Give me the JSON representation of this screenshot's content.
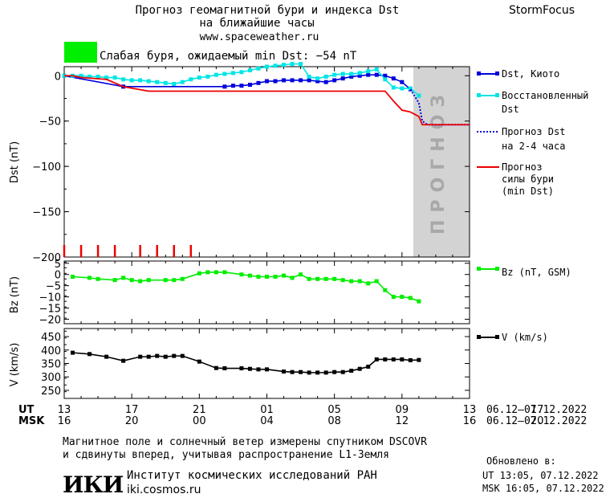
{
  "header": {
    "title_line1": "Прогноз геомагнитной бури и индекса Dst",
    "title_line2": "на ближайшие часы",
    "site": "www.spaceweather.ru",
    "brand": "StormFocus"
  },
  "alert": {
    "color": "#00ee00",
    "text": "Слабая буря, ожидаемый min Dst: −54 nT"
  },
  "forecast_label": "ПРОГНОЗ",
  "colors": {
    "kyoto": "#0000dd",
    "restored": "#00e5e5",
    "forecast": "#0000dd",
    "storm": "#ee0000",
    "bz": "#00ee00",
    "v": "#000000",
    "forecast_bg": "#d3d3d3"
  },
  "chart_data": [
    {
      "type": "line",
      "x": [
        13,
        13.5,
        14,
        14.5,
        15,
        15.5,
        16,
        16.5,
        17,
        17.5,
        18,
        18.5,
        19,
        19.5,
        20,
        20.5,
        21,
        21.5,
        22,
        22.5,
        23,
        23.5,
        24,
        24.5,
        25,
        25.5,
        26,
        26.5,
        27,
        27.5,
        28,
        28.5,
        29,
        29.5,
        30,
        30.5,
        31,
        31.5,
        32,
        32.5,
        33,
        33.5,
        34,
        34.5
      ],
      "ylabel": "Dst (nT)",
      "ylim": [
        -200,
        10
      ],
      "yticks": [
        0,
        -50,
        -100,
        -150,
        -200
      ],
      "series": [
        {
          "name": "Dst, Киото",
          "points": [
            [
              13,
              0
            ],
            [
              16.5,
              -12
            ],
            [
              22.5,
              -12
            ],
            [
              23,
              -11
            ],
            [
              23.5,
              -11
            ],
            [
              24,
              -10
            ],
            [
              24.5,
              -8
            ],
            [
              25,
              -6
            ],
            [
              25.5,
              -6
            ],
            [
              26,
              -5
            ],
            [
              26.5,
              -5
            ],
            [
              27,
              -5
            ],
            [
              27.5,
              -5
            ],
            [
              28,
              -6
            ],
            [
              28.5,
              -7
            ],
            [
              29,
              -5
            ],
            [
              29.5,
              -3
            ],
            [
              30,
              -1
            ],
            [
              30.5,
              0
            ],
            [
              31,
              1
            ],
            [
              31.5,
              1
            ],
            [
              32,
              0
            ],
            [
              32.5,
              -3
            ],
            [
              33,
              -7
            ],
            [
              33.5,
              -15
            ]
          ]
        },
        {
          "name": "Восстановленный Dst",
          "points": [
            [
              13,
              0
            ],
            [
              13.5,
              0
            ],
            [
              14,
              0
            ],
            [
              14.5,
              -1
            ],
            [
              15,
              -1
            ],
            [
              15.5,
              -2
            ],
            [
              16,
              -2
            ],
            [
              16.5,
              -4
            ],
            [
              17,
              -5
            ],
            [
              17.5,
              -5
            ],
            [
              18,
              -6
            ],
            [
              18.5,
              -7
            ],
            [
              19,
              -8
            ],
            [
              19.5,
              -9
            ],
            [
              20,
              -7
            ],
            [
              20.5,
              -4
            ],
            [
              21,
              -2
            ],
            [
              21.5,
              -1
            ],
            [
              22,
              1
            ],
            [
              22.5,
              2
            ],
            [
              23,
              3
            ],
            [
              23.5,
              4
            ],
            [
              24,
              6
            ],
            [
              24.5,
              8
            ],
            [
              25,
              10
            ],
            [
              25.5,
              11
            ],
            [
              26,
              12
            ],
            [
              26.5,
              13
            ],
            [
              27,
              13
            ],
            [
              27.5,
              -1
            ],
            [
              28,
              -3
            ],
            [
              28.5,
              -1
            ],
            [
              29,
              1
            ],
            [
              29.5,
              2
            ],
            [
              30,
              2
            ],
            [
              30.5,
              3
            ],
            [
              31,
              5
            ],
            [
              31.5,
              7
            ],
            [
              32,
              -4
            ],
            [
              32.5,
              -13
            ],
            [
              33,
              -14
            ],
            [
              33.5,
              -14
            ],
            [
              34,
              -22
            ]
          ]
        },
        {
          "name": "Прогноз Dst на 2-4 часа",
          "points": [
            [
              33.5,
              -15
            ],
            [
              34,
              -30
            ],
            [
              34.2,
              -50
            ],
            [
              34.5,
              -54
            ],
            [
              37,
              -54
            ]
          ]
        },
        {
          "name": "Прогноз силы бури (min Dst)",
          "points": [
            [
              13,
              0
            ],
            [
              13.5,
              0
            ],
            [
              14,
              -2
            ],
            [
              15.5,
              -4
            ],
            [
              16.5,
              -12
            ],
            [
              18,
              -17
            ],
            [
              32,
              -17
            ],
            [
              32.5,
              -28
            ],
            [
              33,
              -38
            ],
            [
              33.5,
              -40
            ],
            [
              34,
              -45
            ],
            [
              34.2,
              -54
            ],
            [
              37,
              -54
            ]
          ]
        }
      ],
      "storm_ticks_x": [
        13,
        14,
        15,
        16,
        17.5,
        18.5,
        19.5,
        20.5
      ],
      "forecast_region_x": [
        33.5,
        37
      ]
    },
    {
      "type": "line",
      "ylabel": "Bz (nT)",
      "ylim": [
        -22,
        6
      ],
      "yticks": [
        5,
        0,
        -5,
        -10,
        -15,
        -20
      ],
      "series": [
        {
          "name": "Bz (nT, GSM)",
          "points": [
            [
              13.5,
              -1
            ],
            [
              14.5,
              -1.5
            ],
            [
              15,
              -2
            ],
            [
              16,
              -2.5
            ],
            [
              16.5,
              -1.5
            ],
            [
              17,
              -2.5
            ],
            [
              17.5,
              -3
            ],
            [
              18,
              -2.5
            ],
            [
              19,
              -2.5
            ],
            [
              19.5,
              -2.5
            ],
            [
              20,
              -2
            ],
            [
              21,
              0.5
            ],
            [
              21.5,
              1
            ],
            [
              22,
              1
            ],
            [
              22.5,
              1
            ],
            [
              23.5,
              0
            ],
            [
              24,
              -0.5
            ],
            [
              24.5,
              -1
            ],
            [
              25,
              -1
            ],
            [
              25.5,
              -1
            ],
            [
              26,
              -0.5
            ],
            [
              26.5,
              -1.5
            ],
            [
              27,
              0
            ],
            [
              27.5,
              -2
            ],
            [
              28,
              -2
            ],
            [
              28.5,
              -2
            ],
            [
              29,
              -2
            ],
            [
              29.5,
              -2.5
            ],
            [
              30,
              -3
            ],
            [
              30.5,
              -3
            ],
            [
              31,
              -4
            ],
            [
              31.5,
              -3
            ],
            [
              32,
              -7
            ],
            [
              32.5,
              -10
            ],
            [
              33,
              -10
            ],
            [
              33.5,
              -10.5
            ],
            [
              34,
              -12
            ]
          ]
        }
      ]
    },
    {
      "type": "line",
      "ylabel": "V (km/s)",
      "ylim": [
        220,
        480
      ],
      "yticks": [
        450,
        400,
        350,
        300,
        250
      ],
      "series": [
        {
          "name": "V (km/s)",
          "points": [
            [
              13.5,
              390
            ],
            [
              14.5,
              385
            ],
            [
              15.5,
              375
            ],
            [
              16.5,
              360
            ],
            [
              17.5,
              375
            ],
            [
              18,
              375
            ],
            [
              18.5,
              378
            ],
            [
              19,
              375
            ],
            [
              19.5,
              378
            ],
            [
              20,
              378
            ],
            [
              21,
              357
            ],
            [
              22,
              333
            ],
            [
              22.5,
              332
            ],
            [
              23.5,
              332
            ],
            [
              24,
              330
            ],
            [
              24.5,
              328
            ],
            [
              25,
              328
            ],
            [
              26,
              320
            ],
            [
              26.5,
              318
            ],
            [
              27,
              318
            ],
            [
              27.5,
              316
            ],
            [
              28,
              316
            ],
            [
              28.5,
              316
            ],
            [
              29,
              318
            ],
            [
              29.5,
              318
            ],
            [
              30,
              323
            ],
            [
              30.5,
              330
            ],
            [
              31,
              338
            ],
            [
              31.5,
              365
            ],
            [
              32,
              365
            ],
            [
              32.5,
              365
            ],
            [
              33,
              365
            ],
            [
              33.5,
              362
            ],
            [
              34,
              363
            ]
          ]
        }
      ]
    }
  ],
  "axis": {
    "ut_label": "UT",
    "msk_label": "MSK",
    "ut_ticks": [
      "13",
      "17",
      "21",
      "01",
      "05",
      "09",
      "13",
      "17"
    ],
    "msk_ticks": [
      "16",
      "20",
      "00",
      "04",
      "08",
      "12",
      "16",
      "20"
    ],
    "date_range_ut": "06.12–07.12.2022",
    "date_range_msk": "06.12–07.12.2022"
  },
  "legends": {
    "kyoto": "Dst, Киото",
    "restored_1": "Восстановленный",
    "restored_2": "Dst",
    "forecast_1": "Прогноз Dst",
    "forecast_2": "на 2-4 часа",
    "storm_1": "Прогноз",
    "storm_2": "силы бури",
    "storm_3": "(min Dst)",
    "bz": "Bz (nT, GSM)",
    "v": "V (km/s)"
  },
  "footer": {
    "note1": "Магнитное поле и солнечный ветер измерены спутником DSCOVR",
    "note2": "и сдвинуты вперед, учитывая распространение L1-Земля",
    "updated": "Обновлено в:",
    "updated_ut": "UT  13:05, 07.12.2022",
    "updated_msk": "MSK 16:05, 07.12.2022",
    "logo": "ИКИ",
    "institute": "Институт космических исследований РАН",
    "institute_site": "iki.cosmos.ru"
  }
}
